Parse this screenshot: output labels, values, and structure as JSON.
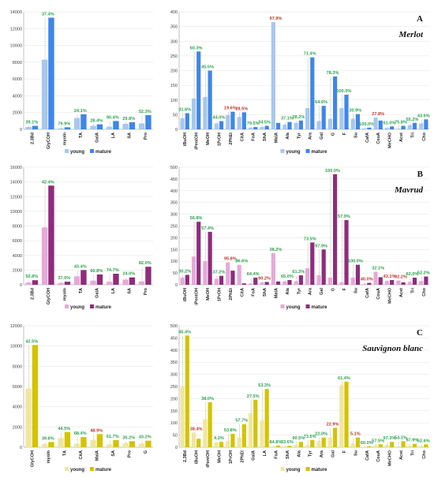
{
  "chart_data": [
    {
      "type": "bar",
      "row": "A",
      "letter": "A",
      "title": "Merlot",
      "side": "left",
      "colors": {
        "young": "#a9c7ee",
        "mature": "#3f86e8"
      },
      "ylim": [
        0,
        14000
      ],
      "yticks": [
        0,
        2000,
        4000,
        6000,
        8000,
        10000,
        12000,
        14000
      ],
      "categories": [
        "2,3Bd",
        "GlyCOH",
        "myoIn",
        "TA",
        "GalA",
        "LA",
        "SA",
        "Pro"
      ],
      "series": [
        {
          "name": "young",
          "values": [
            290,
            8300,
            120,
            1350,
            420,
            320,
            650,
            700
          ]
        },
        {
          "name": "mature",
          "values": [
            420,
            13300,
            250,
            1800,
            600,
            1000,
            850,
            1700
          ]
        }
      ],
      "pct_labels": [
        "39.1%",
        "37.4%",
        "79.9%",
        "24.1%",
        "28.4%",
        "90.4%",
        "29.8%",
        "52.3%"
      ],
      "pct_dir": [
        "up",
        "up",
        "up",
        "up",
        "up",
        "up",
        "up",
        "up"
      ],
      "legend": [
        "young",
        "mature"
      ]
    },
    {
      "type": "bar",
      "row": "A",
      "side": "right",
      "colors": {
        "young": "#a9c7ee",
        "mature": "#3f86e8"
      },
      "ylim": [
        0,
        400
      ],
      "yticks": [
        0,
        50,
        100,
        150,
        200,
        250,
        300,
        350,
        400
      ],
      "categories": [
        "iBuOH",
        "iPentOH",
        "MeOH",
        "1PrOH",
        "2PhEt",
        "CitA",
        "FoA",
        "ShA",
        "MalA",
        "Ala",
        "Tyr",
        "Ara",
        "Gal",
        "G",
        "F",
        "Su",
        "CafA",
        "CouA",
        "MeCHO",
        "Acet",
        "Tri",
        "Cho"
      ],
      "series": [
        {
          "name": "young",
          "values": [
            38,
            105,
            110,
            20,
            48,
            42,
            6,
            8,
            365,
            16,
            22,
            72,
            28,
            36,
            72,
            36,
            3,
            40,
            5,
            2,
            14,
            20
          ]
        },
        {
          "name": "mature",
          "values": [
            55,
            265,
            200,
            28,
            60,
            58,
            8,
            12,
            22,
            25,
            30,
            245,
            80,
            180,
            118,
            52,
            6,
            30,
            10,
            12,
            22,
            34
          ]
        }
      ],
      "pct_labels": [
        "31.6%",
        "60.3%",
        "45.5%",
        "44.0%",
        "19.6%",
        "28.5%",
        "79.5%",
        "34.5%",
        "97.9%",
        "37.1%",
        "28.2%",
        "71.4%",
        "64.6%",
        "78.3%",
        "100.0%",
        "30.9%",
        "100.0%",
        "27.8%",
        "61.0%",
        "75.8%",
        "55.2%",
        "43.6%"
      ],
      "pct_dir": [
        "up",
        "up",
        "up",
        "up",
        "down",
        "down",
        "up",
        "up",
        "down",
        "up",
        "up",
        "up",
        "up",
        "up",
        "up",
        "up",
        "up",
        "down",
        "up",
        "up",
        "up",
        "up"
      ],
      "legend": [
        "young",
        "mature"
      ]
    },
    {
      "type": "bar",
      "row": "B",
      "letter": "B",
      "title": "Mavrud",
      "side": "left",
      "colors": {
        "young": "#e6a9d9",
        "mature": "#8e2c7c"
      },
      "ylim": [
        0,
        16000
      ],
      "yticks": [
        0,
        2000,
        4000,
        6000,
        8000,
        10000,
        12000,
        14000,
        16000
      ],
      "categories": [
        "2,3Bd",
        "GlyCOH",
        "myoIn",
        "TA",
        "GalA",
        "LA",
        "SA",
        "Pro"
      ],
      "series": [
        {
          "name": "young",
          "values": [
            300,
            7800,
            250,
            1150,
            550,
            400,
            700,
            450
          ]
        },
        {
          "name": "mature",
          "values": [
            620,
            13500,
            420,
            2000,
            1400,
            1500,
            1000,
            2450
          ]
        }
      ],
      "pct_labels": [
        "50.8%",
        "42.4%",
        "37.0%",
        "43.4%",
        "60.8%",
        "74.7%",
        "24.0%",
        "82.0%"
      ],
      "pct_dir": [
        "up",
        "up",
        "up",
        "up",
        "up",
        "up",
        "up",
        "up"
      ],
      "legend": [
        "young",
        "mature"
      ]
    },
    {
      "type": "bar",
      "row": "B",
      "side": "right",
      "colors": {
        "young": "#e6a9d9",
        "mature": "#8e2c7c"
      },
      "ylim": [
        0,
        500
      ],
      "yticks": [
        0,
        50,
        100,
        150,
        200,
        250,
        300,
        350,
        400,
        450,
        500
      ],
      "categories": [
        "iBuOH",
        "iPentOH",
        "MeOH",
        "1PrOH",
        "2PhEt",
        "CitA",
        "FoA",
        "ShA",
        "MalA",
        "Ala",
        "Tyr",
        "Ara",
        "Gal",
        "G",
        "F",
        "Su",
        "CafA",
        "CouA",
        "MeCHO",
        "Acet",
        "Tri",
        "Cho"
      ],
      "series": [
        {
          "name": "young",
          "values": [
            30,
            120,
            100,
            25,
            95,
            85,
            5,
            10,
            135,
            14,
            15,
            70,
            40,
            30,
            10,
            30,
            3,
            55,
            16,
            18,
            12,
            16
          ]
        },
        {
          "name": "mature",
          "values": [
            42,
            268,
            225,
            38,
            60,
            6,
            30,
            12,
            14,
            20,
            40,
            180,
            150,
            470,
            275,
            85,
            8,
            32,
            20,
            10,
            30,
            35
          ]
        }
      ],
      "pct_labels": [
        "30.2%",
        "56.8%",
        "57.4%",
        "37.2%",
        "95.8%",
        "86.6%",
        "64.4%",
        "90.2%",
        "38.2%",
        "65.0%",
        "61.3%",
        "73.5%",
        "97.9%",
        "100.0%",
        "57.9%",
        "100.0%",
        "40.0%",
        "32.1%",
        "43.1%",
        "92.2%",
        "62.0%",
        "52.2%"
      ],
      "pct_dir": [
        "up",
        "up",
        "up",
        "up",
        "down",
        "up",
        "up",
        "down",
        "up",
        "up",
        "up",
        "up",
        "up",
        "up",
        "up",
        "up",
        "down",
        "up",
        "down",
        "down",
        "up",
        "up"
      ],
      "legend": [
        "young",
        "mature"
      ]
    },
    {
      "type": "bar",
      "row": "C",
      "letter": "C",
      "title": "Sauvignon blanc",
      "side": "left",
      "colors": {
        "young": "#f0e6a0",
        "mature": "#d4c300"
      },
      "ylim": [
        0,
        12000
      ],
      "yticks": [
        0,
        2000,
        4000,
        6000,
        8000,
        10000,
        12000
      ],
      "categories": [
        "GlyCOH",
        "myoIn",
        "TA",
        "CitA",
        "MalA",
        "SA",
        "Pro",
        "G"
      ],
      "series": [
        {
          "name": "young",
          "values": [
            5800,
            300,
            900,
            350,
            700,
            280,
            400,
            350
          ]
        },
        {
          "name": "mature",
          "values": [
            10100,
            520,
            1500,
            1000,
            1300,
            700,
            600,
            650
          ]
        }
      ],
      "pct_labels": [
        "42.5%",
        "39.8%",
        "44.5%",
        "68.4%",
        "48.9%",
        "61.7%",
        "35.2%",
        "43.2%"
      ],
      "pct_dir": [
        "up",
        "up",
        "up",
        "up",
        "down",
        "up",
        "up",
        "up"
      ],
      "legend": [
        "young",
        "mature"
      ]
    },
    {
      "type": "bar",
      "row": "C",
      "side": "right",
      "colors": {
        "young": "#f0e6a0",
        "mature": "#d4c300"
      },
      "ylim": [
        0,
        500
      ],
      "yticks": [
        0,
        50,
        100,
        150,
        200,
        250,
        300,
        350,
        400,
        450,
        500
      ],
      "categories": [
        "2,3Bd",
        "iBuOH",
        "iPentOH",
        "MeOH",
        "1PrOH",
        "2PhEt",
        "GalA",
        "LA",
        "FoA",
        "ShA",
        "Ala",
        "Tyr",
        "Ara",
        "Gal",
        "F",
        "Su",
        "CafA",
        "CouA",
        "MeCHO",
        "Acet",
        "Tri",
        "Cho"
      ],
      "series": [
        {
          "name": "young",
          "values": [
            250,
            60,
            115,
            20,
            25,
            40,
            140,
            110,
            3,
            4,
            10,
            8,
            25,
            40,
            255,
            15,
            2,
            8,
            10,
            1,
            6,
            5
          ]
        },
        {
          "name": "mature",
          "values": [
            460,
            35,
            185,
            22,
            55,
            95,
            195,
            240,
            7,
            6,
            22,
            30,
            40,
            80,
            270,
            40,
            4,
            12,
            22,
            25,
            14,
            12
          ]
        }
      ],
      "pct_labels": [
        "45.4%",
        "38.4%",
        "38.0%",
        "4.2%",
        "53.8%",
        "57.7%",
        "27.5%",
        "53.3%",
        "84.8%",
        "33.6%",
        "90.5%",
        "73.5%",
        "22.0%",
        "22.9%",
        "61.4%",
        "5.1%",
        "60.0%",
        "57.5%",
        "97.3%",
        "54.1%",
        "97.9%",
        "52.6%"
      ],
      "pct_dir": [
        "up",
        "down",
        "up",
        "up",
        "up",
        "up",
        "up",
        "up",
        "up",
        "up",
        "up",
        "up",
        "up",
        "down",
        "up",
        "down",
        "up",
        "up",
        "up",
        "up",
        "up",
        "up"
      ],
      "legend": [
        "young",
        "mature"
      ]
    }
  ]
}
